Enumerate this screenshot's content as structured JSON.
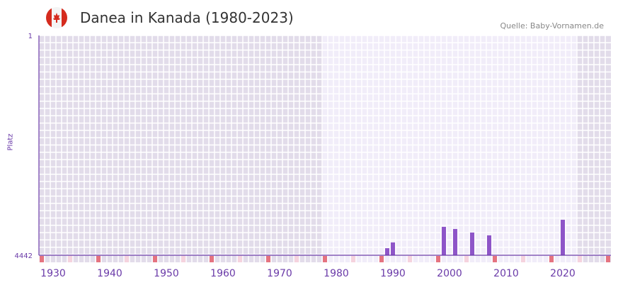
{
  "header": {
    "title": "Danea in Kanada (1980-2023)",
    "source": "Quelle: Baby-Vornamen.de",
    "flag_icon": "canada-flag-icon"
  },
  "chart_data": {
    "type": "bar",
    "title": "Danea in Kanada (1980-2023)",
    "xlabel": "",
    "ylabel": "Platz",
    "xlim": [
      1928,
      2028
    ],
    "ylim": [
      4442,
      1
    ],
    "y_ticks": [
      "1",
      "4442"
    ],
    "x_ticks": [
      1930,
      1940,
      1950,
      1960,
      1970,
      1980,
      1990,
      2000,
      2010,
      2020
    ],
    "highlight_range": [
      1978,
      2022
    ],
    "series": [
      {
        "name": "Platz",
        "x": [
          1989,
          1990,
          1999,
          2001,
          2004,
          2007,
          2020
        ],
        "values": [
          4300,
          4184,
          3869,
          3912,
          3984,
          4041,
          3726
        ]
      }
    ],
    "bar_color": "#8e55c8",
    "axis_color": "#6a3aa8"
  }
}
